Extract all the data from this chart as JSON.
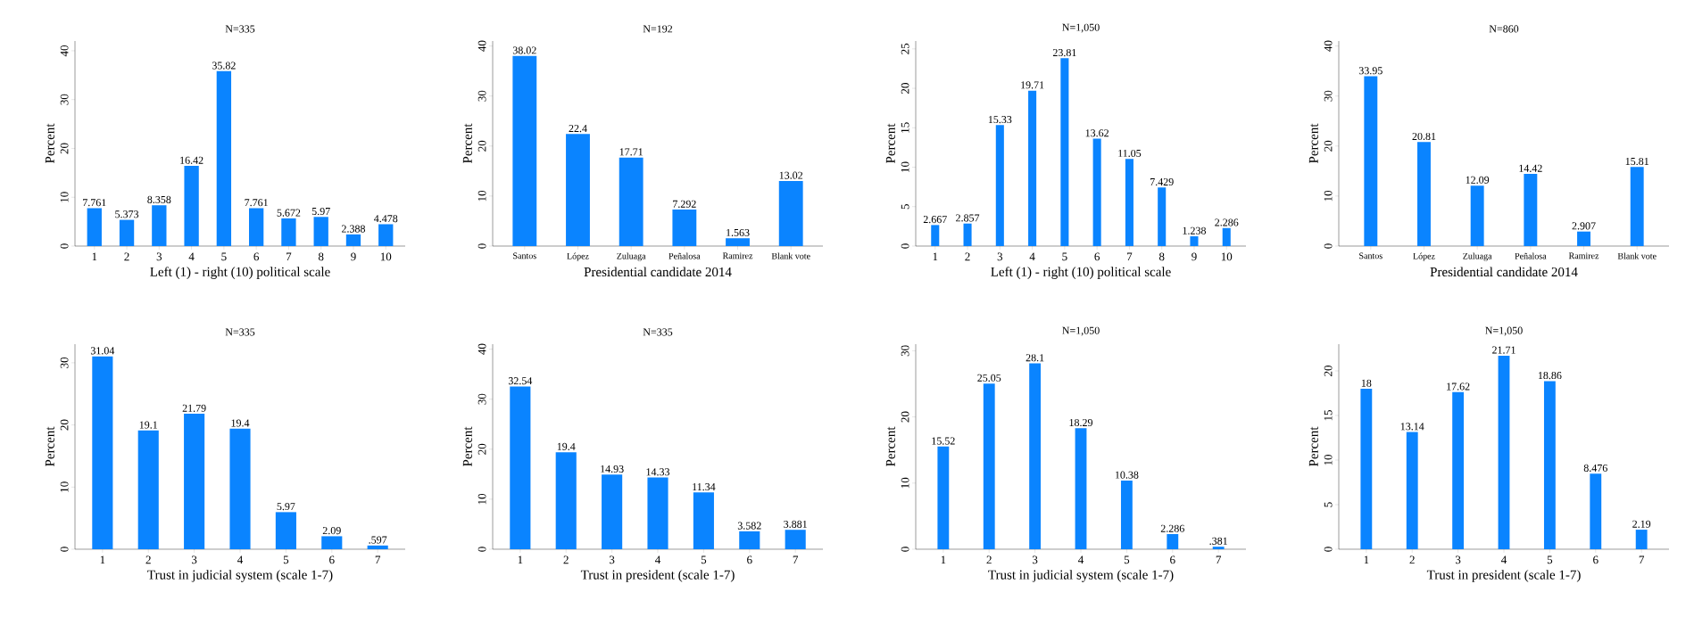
{
  "chart_data": [
    {
      "type": "bar",
      "title": "N=335",
      "xlabel": "Left (1) - right (10) political scale",
      "ylabel": "Percent",
      "categories": [
        "1",
        "2",
        "3",
        "4",
        "5",
        "6",
        "7",
        "8",
        "9",
        "10"
      ],
      "values": [
        7.761,
        5.373,
        8.358,
        16.42,
        35.82,
        7.761,
        5.672,
        5.97,
        2.388,
        4.478
      ],
      "value_labels": [
        "7.761",
        "5.373",
        "8.358",
        "16.42",
        "35.82",
        "7.761",
        "5.672",
        "5.97",
        "2.388",
        "4.478"
      ],
      "color": "#0a84ff",
      "ylim": [
        0,
        42
      ],
      "yticks": [
        0,
        10,
        20,
        30,
        40
      ]
    },
    {
      "type": "bar",
      "title": "N=192",
      "xlabel": "Presidential candidate 2014",
      "ylabel": "Percent",
      "categories": [
        "Santos",
        "López",
        "Zuluaga",
        "Peñalosa",
        "Ramirez",
        "Blank vote"
      ],
      "values": [
        38.02,
        22.4,
        17.71,
        7.292,
        1.563,
        13.02
      ],
      "value_labels": [
        "38.02",
        "22.4",
        "17.71",
        "7.292",
        "1.563",
        "13.02"
      ],
      "color": "#0a84ff",
      "ylim": [
        0,
        41
      ],
      "yticks": [
        0,
        10,
        20,
        30,
        40
      ]
    },
    {
      "type": "bar",
      "title": "N=1,050",
      "xlabel": "Left (1) - right (10) political scale",
      "ylabel": "Percent",
      "categories": [
        "1",
        "2",
        "3",
        "4",
        "5",
        "6",
        "7",
        "8",
        "9",
        "10"
      ],
      "values": [
        2.667,
        2.857,
        15.33,
        19.71,
        23.81,
        13.62,
        11.05,
        7.429,
        1.238,
        2.286
      ],
      "value_labels": [
        "2.667",
        "2.857",
        "15.33",
        "19.71",
        "23.81",
        "13.62",
        "11.05",
        "7.429",
        "1.238",
        "2.286"
      ],
      "color": "#0a84ff",
      "ylim": [
        0,
        26
      ],
      "yticks": [
        0,
        5,
        10,
        15,
        20,
        25
      ]
    },
    {
      "type": "bar",
      "title": "N=860",
      "xlabel": "Presidential candidate 2014",
      "ylabel": "Percent",
      "categories": [
        "Santos",
        "López",
        "Zuluaga",
        "Peñalosa",
        "Ramirez",
        "Blank vote"
      ],
      "values": [
        33.95,
        20.81,
        12.09,
        14.42,
        2.907,
        15.81
      ],
      "value_labels": [
        "33.95",
        "20.81",
        "12.09",
        "14.42",
        "2.907",
        "15.81"
      ],
      "color": "#0a84ff",
      "ylim": [
        0,
        41
      ],
      "yticks": [
        0,
        10,
        20,
        30,
        40
      ]
    },
    {
      "type": "bar",
      "title": "N=335",
      "xlabel": "Trust in judicial system (scale 1-7)",
      "ylabel": "Percent",
      "categories": [
        "1",
        "2",
        "3",
        "4",
        "5",
        "6",
        "7"
      ],
      "values": [
        31.04,
        19.1,
        21.79,
        19.4,
        5.97,
        2.09,
        0.597
      ],
      "value_labels": [
        "31.04",
        "19.1",
        "21.79",
        "19.4",
        "5.97",
        "2.09",
        ".597"
      ],
      "color": "#0a84ff",
      "ylim": [
        0,
        33
      ],
      "yticks": [
        0,
        10,
        20,
        30
      ]
    },
    {
      "type": "bar",
      "title": "N=335",
      "xlabel": "Trust in president (scale 1-7)",
      "ylabel": "Percent",
      "categories": [
        "1",
        "2",
        "3",
        "4",
        "5",
        "6",
        "7"
      ],
      "values": [
        32.54,
        19.4,
        14.93,
        14.33,
        11.34,
        3.582,
        3.881
      ],
      "value_labels": [
        "32.54",
        "19.4",
        "14.93",
        "14.33",
        "11.34",
        "3.582",
        "3.881"
      ],
      "color": "#0a84ff",
      "ylim": [
        0,
        41
      ],
      "yticks": [
        0,
        10,
        20,
        30,
        40
      ]
    },
    {
      "type": "bar",
      "title": "N=1,050",
      "xlabel": "Trust in judicial system (scale 1-7)",
      "ylabel": "Percent",
      "categories": [
        "1",
        "2",
        "3",
        "4",
        "5",
        "6",
        "7"
      ],
      "values": [
        15.52,
        25.05,
        28.1,
        18.29,
        10.38,
        2.286,
        0.381
      ],
      "value_labels": [
        "15.52",
        "25.05",
        "28.1",
        "18.29",
        "10.38",
        "2.286",
        ".381"
      ],
      "color": "#0a84ff",
      "ylim": [
        0,
        31
      ],
      "yticks": [
        0,
        10,
        20,
        30
      ]
    },
    {
      "type": "bar",
      "title": "N=1,050",
      "xlabel": "Trust in president (scale 1-7)",
      "ylabel": "Percent",
      "categories": [
        "1",
        "2",
        "3",
        "4",
        "5",
        "6",
        "7"
      ],
      "values": [
        18,
        13.14,
        17.62,
        21.71,
        18.86,
        8.476,
        2.19
      ],
      "value_labels": [
        "18",
        "13.14",
        "17.62",
        "21.71",
        "18.86",
        "8.476",
        "2.19"
      ],
      "color": "#0a84ff",
      "ylim": [
        0,
        23
      ],
      "yticks": [
        0,
        5,
        10,
        15,
        20
      ]
    }
  ]
}
